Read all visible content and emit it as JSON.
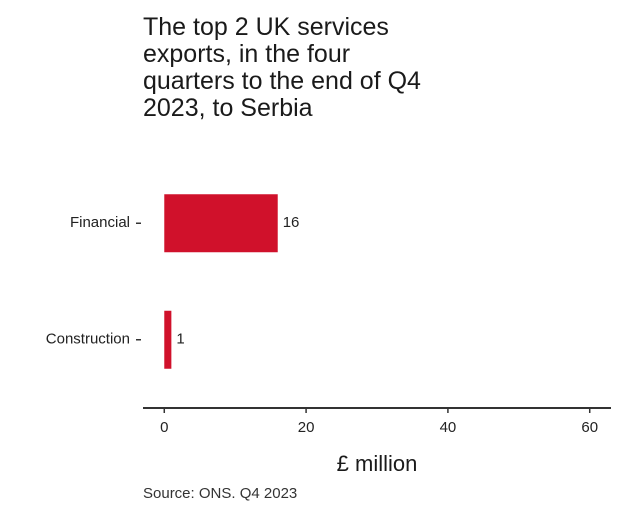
{
  "title_lines": [
    "The top 2 UK services",
    "exports, in the four",
    "quarters to the end of Q4",
    "2023, to Serbia"
  ],
  "source": "Source: ONS. Q4 2023",
  "colors": {
    "bar": "#d0112b",
    "axis": "#333333",
    "text": "#222222"
  },
  "chart_data": {
    "type": "bar",
    "orientation": "horizontal",
    "title": "The top 2 UK services exports, in the four quarters to the end of Q4 2023, to Serbia",
    "categories": [
      "Financial",
      "Construction"
    ],
    "values": [
      16,
      1
    ],
    "data_labels": [
      "16",
      "1"
    ],
    "xlabel": "£ million",
    "ylabel": "",
    "xlim": [
      -3,
      63
    ],
    "xticks": [
      0,
      20,
      40,
      60
    ],
    "xtick_labels": [
      "0",
      "20",
      "40",
      "60"
    ],
    "grid": false,
    "legend": "none"
  }
}
